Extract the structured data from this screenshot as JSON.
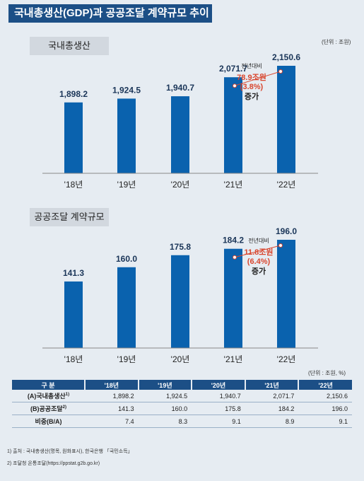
{
  "page_title": "국내총생산(GDP)과 공공조달 계약규모 추이",
  "chart_data": [
    {
      "type": "bar",
      "title": "국내총생산",
      "unit": "(단위 : 조원)",
      "categories": [
        "'18년",
        "'19년",
        "'20년",
        "'21년",
        "'22년"
      ],
      "values": [
        1898.2,
        1924.5,
        1940.7,
        2071.7,
        2150.6
      ],
      "value_labels": [
        "1,898.2",
        "1,924.5",
        "1,940.7",
        "2,071.7",
        "2,150.6"
      ],
      "bar_color": "#0a62ae",
      "annotation": {
        "label": "전년대비",
        "amount": "78.9조원",
        "rate": "(3.8%)",
        "suffix": "증가"
      }
    },
    {
      "type": "bar",
      "title": "공공조달 계약규모",
      "categories": [
        "'18년",
        "'19년",
        "'20년",
        "'21년",
        "'22년"
      ],
      "values": [
        141.3,
        160.0,
        175.8,
        184.2,
        196.0
      ],
      "value_labels": [
        "141.3",
        "160.0",
        "175.8",
        "184.2",
        "196.0"
      ],
      "bar_color": "#0a62ae",
      "annotation": {
        "label": "전년대비",
        "amount": "11.8조원",
        "rate": "(6.4%)",
        "suffix": "증가"
      }
    }
  ],
  "table": {
    "unit": "(단위 : 조원, %)",
    "header_first": "구    분",
    "headers": [
      "'18년",
      "'19년",
      "'20년",
      "'21년",
      "'22년"
    ],
    "rows": [
      {
        "label": "(A)국내총생산",
        "sup": "1)",
        "values": [
          "1,898.2",
          "1,924.5",
          "1,940.7",
          "2,071.7",
          "2,150.6"
        ]
      },
      {
        "label": "(B)공공조달",
        "sup": "2)",
        "values": [
          "141.3",
          "160.0",
          "175.8",
          "184.2",
          "196.0"
        ]
      },
      {
        "label": "비중(B/A)",
        "sup": "",
        "values": [
          "7.4",
          "8.3",
          "9.1",
          "8.9",
          "9.1"
        ]
      }
    ]
  },
  "footnotes": [
    "1)  출처 : 국내총생산(명목, 원화표시), 한국은행 「국민소득」",
    "2)  조달청 온통조달(https://ppstat.g2b.go.kr)"
  ],
  "colors": {
    "header": "#1c4f86",
    "bar": "#0a62ae",
    "annotation": "#d9462e",
    "background": "#e6ecf2"
  }
}
